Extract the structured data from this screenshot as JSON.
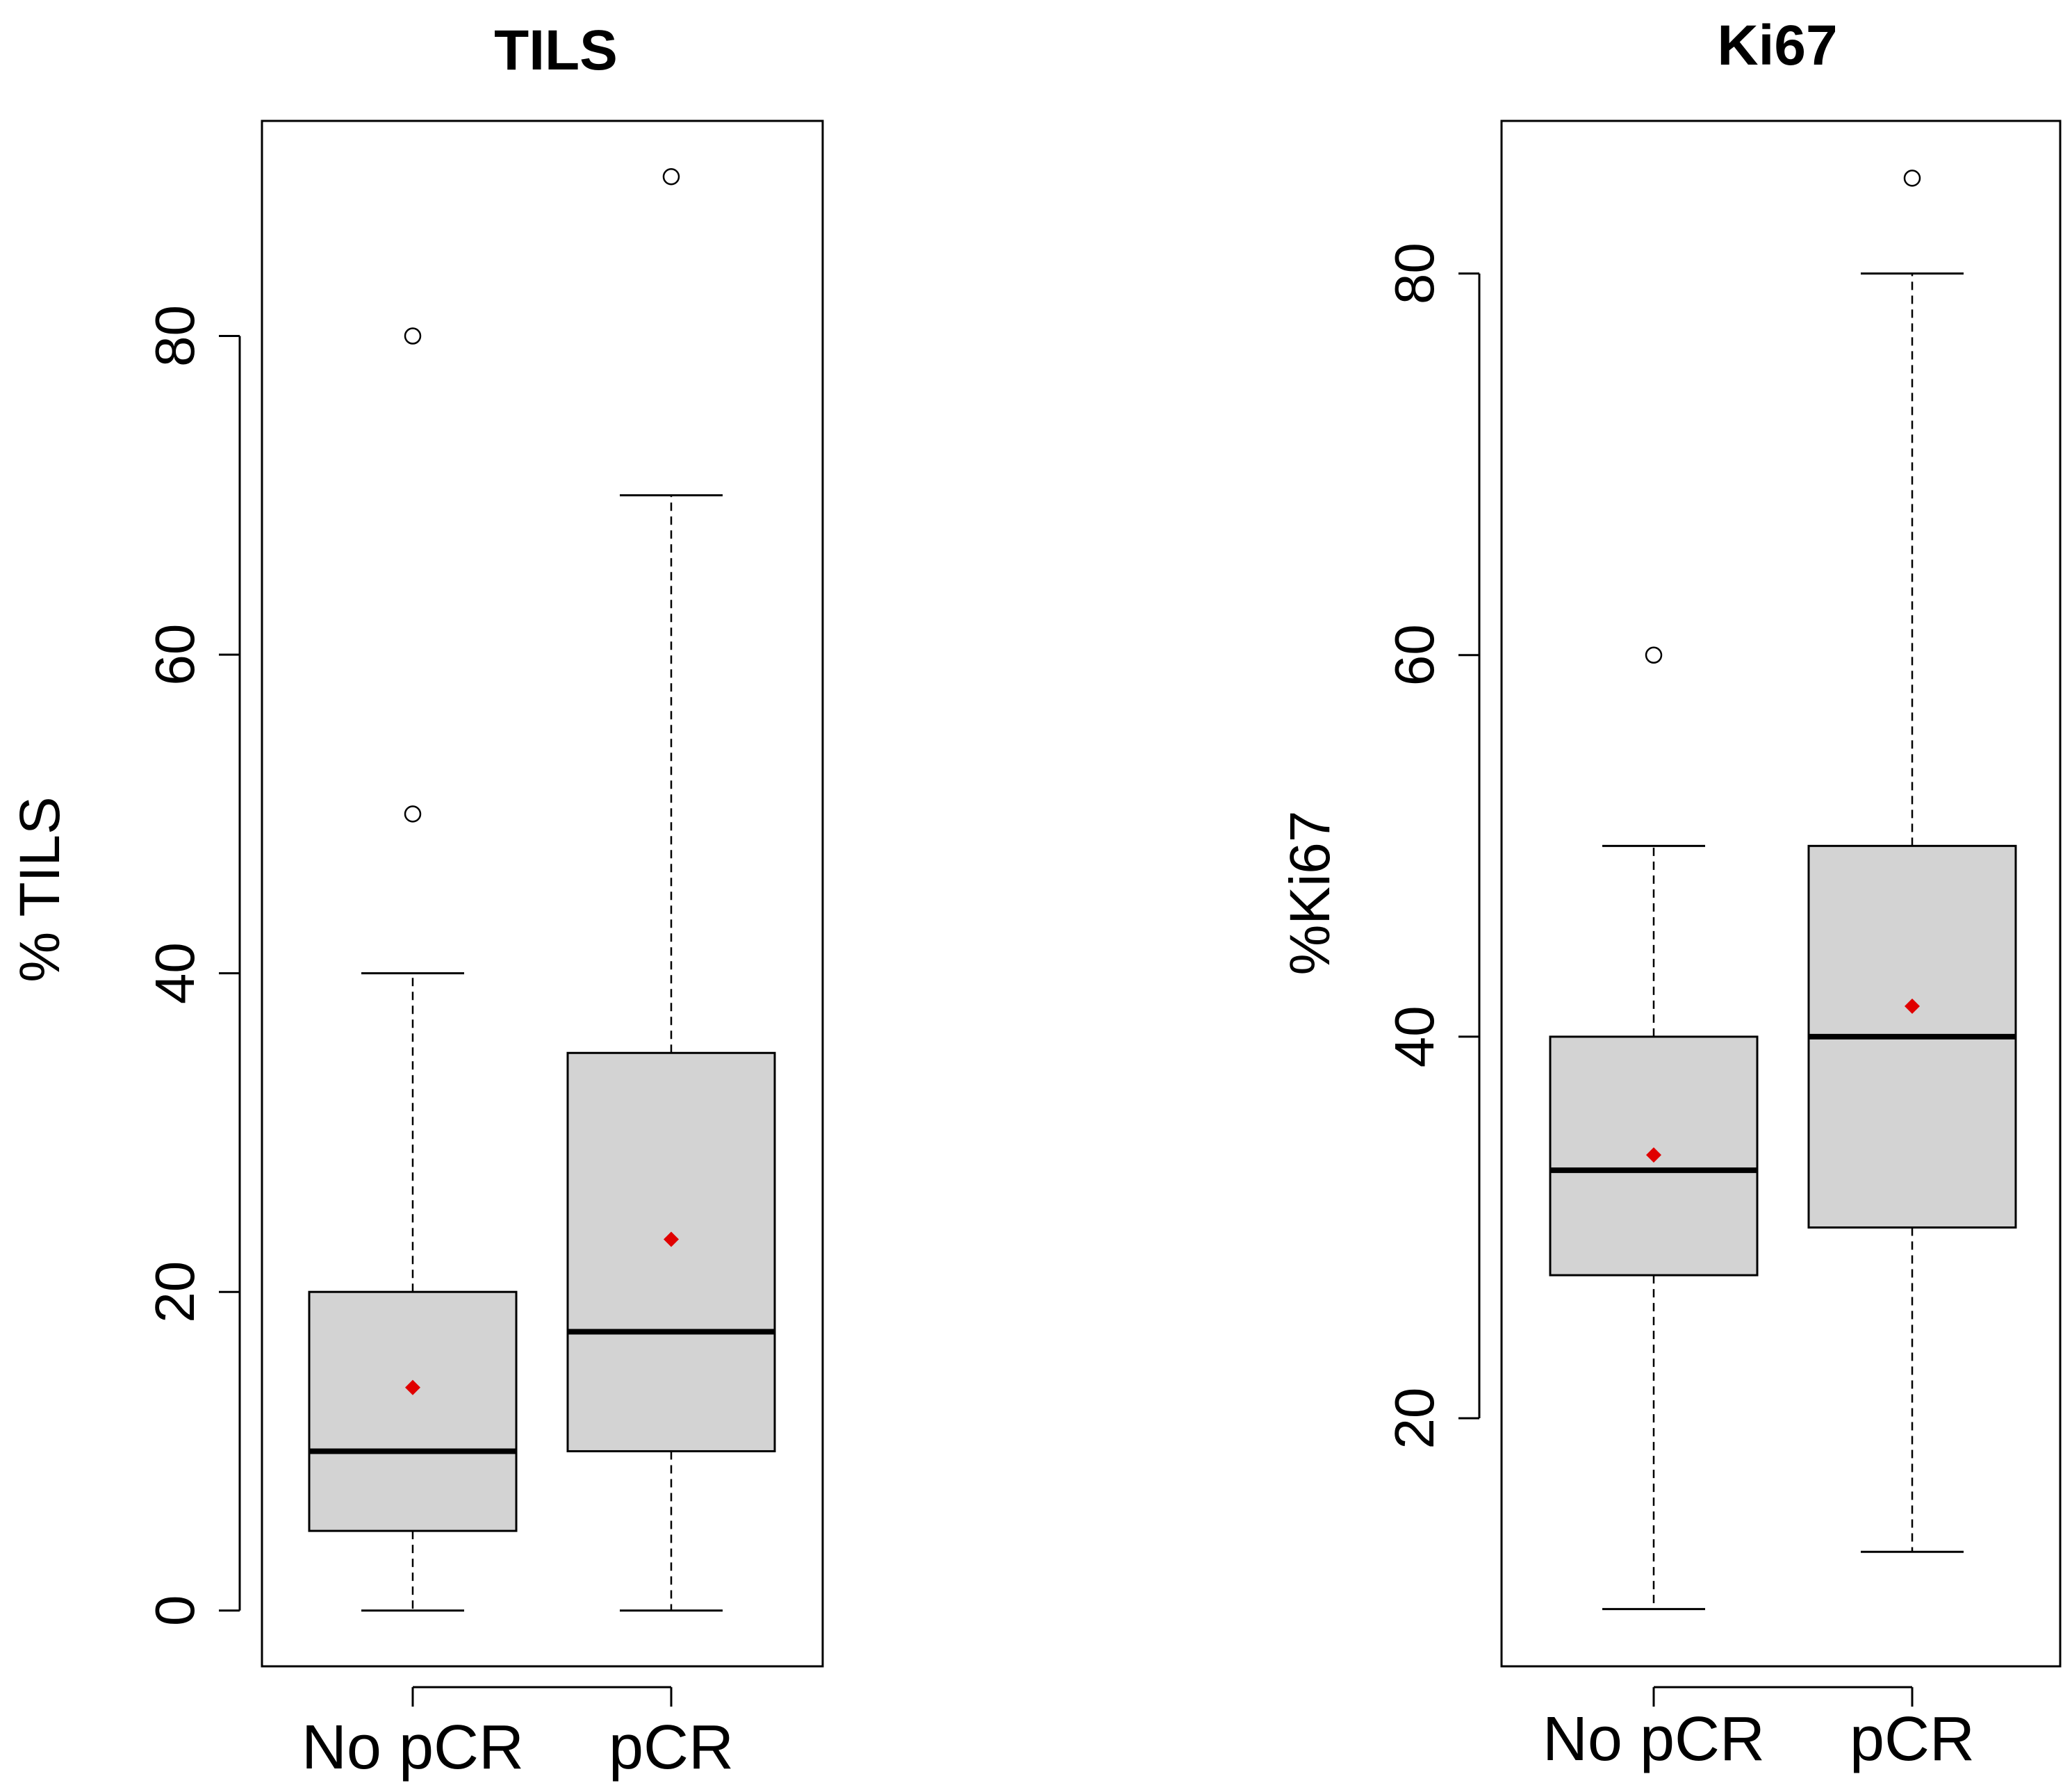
{
  "chart_data": [
    {
      "type": "boxplot",
      "title": "TILS",
      "xlabel": "",
      "ylabel": "% TILS",
      "ylim": [
        -3.5,
        93.5
      ],
      "yticks": [
        0,
        20,
        40,
        60,
        80
      ],
      "categories": [
        "No pCR",
        "pCR"
      ],
      "grid": false,
      "colors": {
        "box_fill": "#d3d3d3",
        "mean_marker": "#e00000",
        "line": "#000000"
      },
      "boxes": [
        {
          "name": "No pCR",
          "whisker_low": 0,
          "q1": 5,
          "median": 10,
          "q3": 20,
          "whisker_high": 40,
          "mean": 14,
          "outliers": [
            50,
            80
          ]
        },
        {
          "name": "pCR",
          "whisker_low": 0,
          "q1": 10,
          "median": 17.5,
          "q3": 35,
          "whisker_high": 70,
          "mean": 23.3,
          "outliers": [
            90
          ]
        }
      ]
    },
    {
      "type": "boxplot",
      "title": "Ki67",
      "xlabel": "",
      "ylabel": "%Ki67",
      "ylim": [
        7,
        88
      ],
      "yticks": [
        20,
        40,
        60,
        80
      ],
      "categories": [
        "No pCR",
        "pCR"
      ],
      "grid": false,
      "colors": {
        "box_fill": "#d3d3d3",
        "mean_marker": "#e00000",
        "line": "#000000"
      },
      "boxes": [
        {
          "name": "No pCR",
          "whisker_low": 10,
          "q1": 27.5,
          "median": 33,
          "q3": 40,
          "whisker_high": 50,
          "mean": 33.8,
          "outliers": [
            60
          ]
        },
        {
          "name": "pCR",
          "whisker_low": 13,
          "q1": 30,
          "median": 40,
          "q3": 50,
          "whisker_high": 80,
          "mean": 41.6,
          "outliers": [
            85
          ]
        }
      ]
    }
  ]
}
